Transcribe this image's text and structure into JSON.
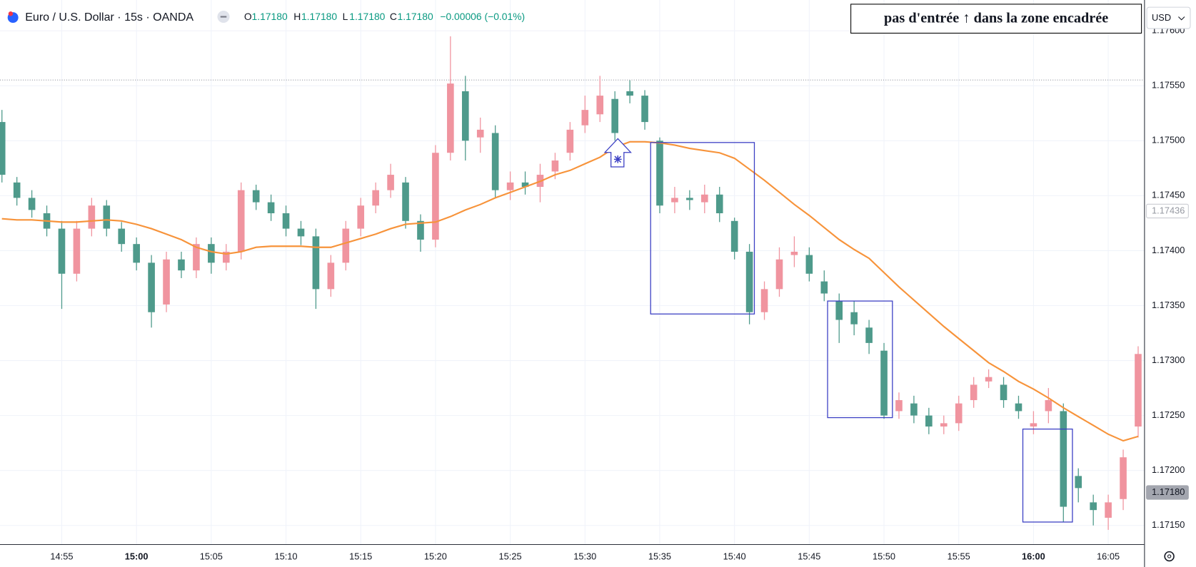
{
  "header": {
    "symbol": "Euro / U.S. Dollar · 15s · OANDA",
    "quote": [
      [
        "O",
        "1.17180"
      ],
      [
        "H",
        "1.17180"
      ],
      [
        "L",
        "1.17180"
      ],
      [
        "C",
        "1.17180"
      ]
    ],
    "change": "−0.00006 (−0.01%)",
    "currency": "USD"
  },
  "annotation": "pas d'entrée ↑ dans la zone encadrée",
  "chart_data": {
    "type": "candlestick",
    "up_color": "#f0949f",
    "down_color": "#4e9a8b",
    "x": [
      891,
      892,
      893,
      894,
      895,
      896,
      897,
      898,
      899,
      900,
      901,
      902,
      903,
      904,
      905,
      906,
      907,
      908,
      909,
      910,
      911,
      912,
      913,
      914,
      915,
      916,
      917,
      918,
      919,
      920,
      921,
      922,
      923,
      924,
      925,
      926,
      927,
      928,
      929,
      930,
      931,
      932,
      933,
      934,
      935,
      936,
      937,
      938,
      939,
      940,
      941,
      942,
      943,
      944,
      945,
      946,
      947,
      948,
      949,
      950,
      951,
      952,
      953,
      954,
      955,
      956,
      957,
      958,
      959,
      960,
      961,
      962,
      963,
      964,
      965,
      966,
      967
    ],
    "open": [
      1.17517,
      1.17462,
      1.17448,
      1.17434,
      1.1742,
      1.17379,
      1.1742,
      1.17441,
      1.1742,
      1.17406,
      1.17389,
      1.17351,
      1.17392,
      1.17382,
      1.17406,
      1.17389,
      1.17399,
      1.17455,
      1.17444,
      1.17434,
      1.1742,
      1.17413,
      1.17365,
      1.17389,
      1.1742,
      1.17441,
      1.17455,
      1.17462,
      1.17427,
      1.1741,
      1.17489,
      1.17545,
      1.17503,
      1.17507,
      1.17455,
      1.17462,
      1.17458,
      1.17472,
      1.17489,
      1.17514,
      1.17524,
      1.17538,
      1.17545,
      1.17541,
      1.175,
      1.17444,
      1.17448,
      1.17444,
      1.17451,
      1.17427,
      1.17399,
      1.17344,
      1.17365,
      1.17396,
      1.17396,
      1.17372,
      1.17354,
      1.17344,
      1.1733,
      1.17309,
      1.17254,
      1.17261,
      1.1725,
      1.1724,
      1.17243,
      1.17264,
      1.17281,
      1.17278,
      1.17261,
      1.1724,
      1.17254,
      1.17254,
      1.17195,
      1.17171,
      1.17157,
      1.17174,
      1.1724
    ],
    "high": [
      1.17528,
      1.17467,
      1.17455,
      1.17441,
      1.17427,
      1.17427,
      1.17448,
      1.17446,
      1.17426,
      1.17412,
      1.17396,
      1.17399,
      1.17399,
      1.17412,
      1.17412,
      1.17406,
      1.17462,
      1.1746,
      1.17451,
      1.17441,
      1.17427,
      1.1742,
      1.17396,
      1.17427,
      1.17448,
      1.17462,
      1.17479,
      1.17467,
      1.17433,
      1.17496,
      1.17595,
      1.17559,
      1.17521,
      1.17514,
      1.17472,
      1.17472,
      1.17479,
      1.17489,
      1.17517,
      1.17541,
      1.17559,
      1.17545,
      1.17555,
      1.17546,
      1.17503,
      1.17458,
      1.17455,
      1.1746,
      1.17458,
      1.1743,
      1.17406,
      1.17372,
      1.17403,
      1.17413,
      1.17403,
      1.17382,
      1.17361,
      1.17354,
      1.17337,
      1.17316,
      1.17271,
      1.17268,
      1.17257,
      1.1725,
      1.17268,
      1.17285,
      1.17292,
      1.17285,
      1.17268,
      1.17254,
      1.17275,
      1.17261,
      1.17202,
      1.17178,
      1.17178,
      1.17219,
      1.17313
    ],
    "low": [
      1.17462,
      1.17441,
      1.1743,
      1.17413,
      1.17347,
      1.17372,
      1.17413,
      1.17413,
      1.17399,
      1.17382,
      1.1733,
      1.17344,
      1.17375,
      1.17375,
      1.17379,
      1.17382,
      1.17392,
      1.17437,
      1.17427,
      1.17413,
      1.17405,
      1.17347,
      1.17358,
      1.17382,
      1.17413,
      1.17434,
      1.17448,
      1.1742,
      1.17399,
      1.17403,
      1.17482,
      1.17482,
      1.17489,
      1.17448,
      1.17446,
      1.17451,
      1.17444,
      1.17465,
      1.17482,
      1.17507,
      1.17517,
      1.175,
      1.17534,
      1.1751,
      1.17434,
      1.17434,
      1.17437,
      1.17434,
      1.17426,
      1.17392,
      1.17333,
      1.17337,
      1.17358,
      1.17385,
      1.17372,
      1.17354,
      1.17316,
      1.17323,
      1.17306,
      1.17247,
      1.17247,
      1.17243,
      1.17233,
      1.17233,
      1.17236,
      1.17257,
      1.17275,
      1.17257,
      1.17247,
      1.17233,
      1.17243,
      1.17153,
      1.17171,
      1.1715,
      1.17146,
      1.17164,
      1.1723
    ],
    "close": [
      1.17469,
      1.17448,
      1.17437,
      1.1742,
      1.17379,
      1.1742,
      1.17441,
      1.1742,
      1.17406,
      1.17389,
      1.17344,
      1.17392,
      1.17382,
      1.17406,
      1.17389,
      1.17399,
      1.17455,
      1.17444,
      1.17434,
      1.1742,
      1.17413,
      1.17365,
      1.17389,
      1.1742,
      1.17441,
      1.17455,
      1.17469,
      1.17427,
      1.1741,
      1.17489,
      1.17552,
      1.175,
      1.1751,
      1.17455,
      1.17462,
      1.17458,
      1.17469,
      1.17482,
      1.1751,
      1.17528,
      1.17541,
      1.17507,
      1.17541,
      1.17517,
      1.17441,
      1.17448,
      1.17446,
      1.17451,
      1.17434,
      1.17399,
      1.17344,
      1.17365,
      1.17392,
      1.17399,
      1.17379,
      1.17361,
      1.17337,
      1.17333,
      1.17316,
      1.1725,
      1.17264,
      1.1725,
      1.1724,
      1.17243,
      1.17261,
      1.17278,
      1.17285,
      1.17264,
      1.17254,
      1.17243,
      1.17264,
      1.17167,
      1.17184,
      1.17164,
      1.17171,
      1.17212,
      1.17306
    ],
    "overlay": {
      "color": "#f7933a",
      "values": [
        1.17429,
        1.17428,
        1.17428,
        1.17427,
        1.17426,
        1.17426,
        1.17427,
        1.17428,
        1.17427,
        1.17424,
        1.1742,
        1.17415,
        1.1741,
        1.17403,
        1.17399,
        1.17397,
        1.17399,
        1.17403,
        1.17404,
        1.17404,
        1.17404,
        1.17403,
        1.17403,
        1.17407,
        1.17411,
        1.17415,
        1.1742,
        1.17424,
        1.17425,
        1.17426,
        1.17431,
        1.17437,
        1.17442,
        1.17448,
        1.17453,
        1.17458,
        1.17463,
        1.17469,
        1.17473,
        1.17479,
        1.17485,
        1.17494,
        1.17499,
        1.17499,
        1.17498,
        1.17496,
        1.17493,
        1.17491,
        1.17489,
        1.17484,
        1.17474,
        1.17464,
        1.17453,
        1.17442,
        1.17432,
        1.17421,
        1.1741,
        1.17401,
        1.17393,
        1.1738,
        1.17367,
        1.17355,
        1.17343,
        1.17331,
        1.1732,
        1.17309,
        1.17298,
        1.1729,
        1.17281,
        1.17274,
        1.17266,
        1.17257,
        1.17249,
        1.17241,
        1.17233,
        1.17227,
        1.17231
      ]
    },
    "xlim": [
      890.87,
      967.4
    ],
    "xticks": [
      {
        "value": 895,
        "label": "14:55"
      },
      {
        "value": 900,
        "label": "15:00"
      },
      {
        "value": 905,
        "label": "15:05"
      },
      {
        "value": 910,
        "label": "15:10"
      },
      {
        "value": 915,
        "label": "15:15"
      },
      {
        "value": 920,
        "label": "15:20"
      },
      {
        "value": 925,
        "label": "15:25"
      },
      {
        "value": 930,
        "label": "15:30"
      },
      {
        "value": 935,
        "label": "15:35"
      },
      {
        "value": 940,
        "label": "15:40"
      },
      {
        "value": 945,
        "label": "15:45"
      },
      {
        "value": 950,
        "label": "15:50"
      },
      {
        "value": 955,
        "label": "15:55"
      },
      {
        "value": 960,
        "label": "16:00"
      },
      {
        "value": 965,
        "label": "16:05"
      }
    ],
    "ylim": [
      1.17133,
      1.17628
    ],
    "yticks": [
      {
        "value": 1.176,
        "label": "1.17600"
      },
      {
        "value": 1.1755,
        "label": "1.17550"
      },
      {
        "value": 1.175,
        "label": "1.17500"
      },
      {
        "value": 1.1745,
        "label": "1.17450"
      },
      {
        "value": 1.174,
        "label": "1.17400"
      },
      {
        "value": 1.1735,
        "label": "1.17350"
      },
      {
        "value": 1.173,
        "label": "1.17300"
      },
      {
        "value": 1.1725,
        "label": "1.17250"
      },
      {
        "value": 1.172,
        "label": "1.17200"
      },
      {
        "value": 1.1715,
        "label": "1.17150"
      }
    ],
    "grid": true,
    "badges": [
      {
        "value": 1.17436,
        "label": "1.17436",
        "style": "outline"
      },
      {
        "value": 1.1718,
        "label": "1.17180",
        "style": "filled"
      }
    ]
  }
}
